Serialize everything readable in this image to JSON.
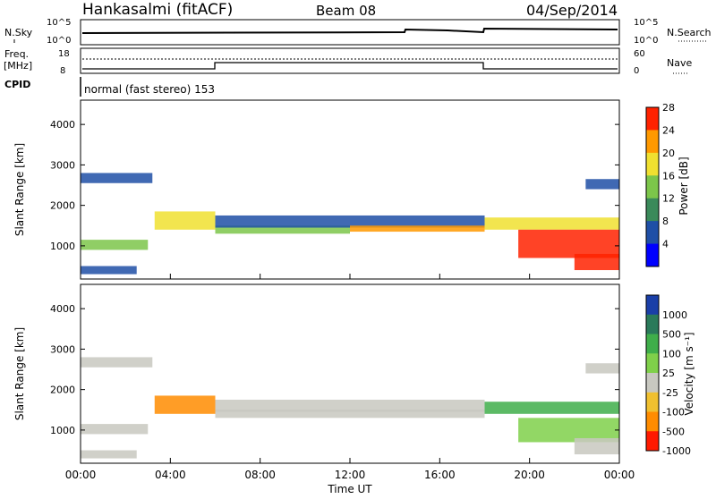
{
  "header": {
    "station": "Hankasalmi (fitACF)",
    "beam": "Beam 08",
    "date": "04/Sep/2014"
  },
  "summary_panels": {
    "nsky_label": "N.Sky",
    "nsky_ticks": [
      "10^5",
      "10^0"
    ],
    "nsearch_label": "N.Search",
    "nsearch_ticks": [
      "10^5",
      "10^0"
    ],
    "freq_label_line1": "Freq.",
    "freq_label_line2": "[MHz]",
    "freq_ticks": [
      "18",
      "8"
    ],
    "nave_label": "Nave",
    "nave_ticks": [
      "60",
      "0"
    ],
    "cpid_label": "CPID",
    "cpid_text": "normal (fast stereo) 153"
  },
  "chart_data": [
    {
      "type": "heatmap",
      "name": "power",
      "ylabel": "Slant Range [km]",
      "ylim": [
        180,
        4600
      ],
      "yticks": [
        "1000",
        "2000",
        "3000",
        "4000"
      ],
      "colorbar_label": "Power [dB]",
      "colorbar_ticks": [
        "4",
        "8",
        "12",
        "16",
        "20",
        "24",
        "28"
      ],
      "colorbar_colors": [
        "#0000ff",
        "#1f4fa6",
        "#3a8a5a",
        "#7cc64a",
        "#f0e030",
        "#ff9900",
        "#ff2200"
      ],
      "x_start": "00:00",
      "x_end": "00:00",
      "bands": [
        {
          "range_km": [
            2550,
            2800
          ],
          "t": [
            0.0,
            3.2
          ],
          "level": 1
        },
        {
          "range_km": [
            900,
            1150
          ],
          "t": [
            0.0,
            3.0
          ],
          "level": 3
        },
        {
          "range_km": [
            300,
            500
          ],
          "t": [
            0.0,
            2.5
          ],
          "level": 1
        },
        {
          "range_km": [
            1400,
            1850
          ],
          "t": [
            3.3,
            6.0
          ],
          "level": 4
        },
        {
          "range_km": [
            1300,
            1500
          ],
          "t": [
            6.0,
            12.0
          ],
          "level": 3
        },
        {
          "range_km": [
            1450,
            1750
          ],
          "t": [
            6.0,
            18.0
          ],
          "level": 1
        },
        {
          "range_km": [
            1350,
            1500
          ],
          "t": [
            12.0,
            18.0
          ],
          "level": 5
        },
        {
          "range_km": [
            1400,
            1700
          ],
          "t": [
            18.0,
            24.0
          ],
          "level": 4
        },
        {
          "range_km": [
            700,
            1400
          ],
          "t": [
            19.5,
            24.0
          ],
          "level": 6
        },
        {
          "range_km": [
            400,
            800
          ],
          "t": [
            22.0,
            24.0
          ],
          "level": 6
        },
        {
          "range_km": [
            2400,
            2650
          ],
          "t": [
            22.5,
            24.0
          ],
          "level": 1
        }
      ]
    },
    {
      "type": "heatmap",
      "name": "velocity",
      "ylabel": "Slant Range [km]",
      "ylim": [
        180,
        4600
      ],
      "yticks": [
        "1000",
        "2000",
        "3000",
        "4000"
      ],
      "xlabel": "Time UT",
      "xticks": [
        "00:00",
        "04:00",
        "08:00",
        "12:00",
        "16:00",
        "20:00",
        "00:00"
      ],
      "colorbar_label": "Velocity [m s⁻¹]",
      "colorbar_ticks": [
        "1000",
        "500",
        "100",
        "25",
        "-25",
        "-100",
        "-500",
        "-1000"
      ],
      "colorbar_colors": [
        "#1a3fa8",
        "#2a7a5a",
        "#3fae4a",
        "#7fd04a",
        "#c8c8c0",
        "#f0c030",
        "#ff8c00",
        "#ff1a00"
      ],
      "bands": [
        {
          "range_km": [
            2550,
            2800
          ],
          "t": [
            0.0,
            3.2
          ],
          "level": 4
        },
        {
          "range_km": [
            900,
            1150
          ],
          "t": [
            0.0,
            3.0
          ],
          "level": 4
        },
        {
          "range_km": [
            300,
            500
          ],
          "t": [
            0.0,
            2.5
          ],
          "level": 4
        },
        {
          "range_km": [
            1400,
            1850
          ],
          "t": [
            3.3,
            6.0
          ],
          "level": 6
        },
        {
          "range_km": [
            1450,
            1750
          ],
          "t": [
            6.0,
            18.0
          ],
          "level": 4
        },
        {
          "range_km": [
            1300,
            1500
          ],
          "t": [
            6.0,
            18.0
          ],
          "level": 4
        },
        {
          "range_km": [
            1400,
            1700
          ],
          "t": [
            18.0,
            24.0
          ],
          "level": 2
        },
        {
          "range_km": [
            700,
            1300
          ],
          "t": [
            19.5,
            24.0
          ],
          "level": 3
        },
        {
          "range_km": [
            400,
            800
          ],
          "t": [
            22.0,
            24.0
          ],
          "level": 4
        },
        {
          "range_km": [
            2400,
            2650
          ],
          "t": [
            22.5,
            24.0
          ],
          "level": 4
        }
      ]
    }
  ]
}
